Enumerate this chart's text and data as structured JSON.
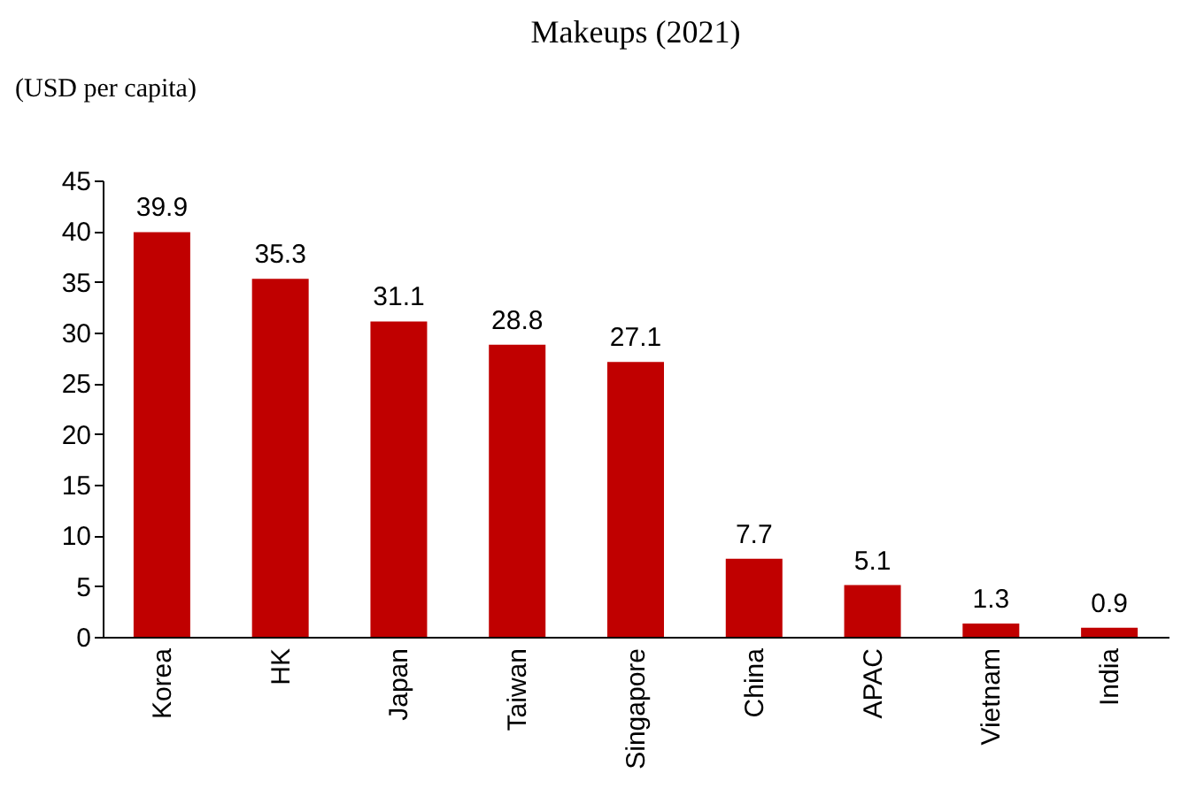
{
  "chart_data": {
    "type": "bar",
    "title": "Makeups (2021)",
    "ylabel": "(USD per capita)",
    "categories": [
      "Korea",
      "HK",
      "Japan",
      "Taiwan",
      "Singapore",
      "China",
      "APAC",
      "Vietnam",
      "India"
    ],
    "values": [
      39.9,
      35.3,
      31.1,
      28.8,
      27.1,
      7.7,
      5.1,
      1.3,
      0.9
    ],
    "color": "#c00000",
    "ylim": [
      0,
      45
    ],
    "yticks": [
      0,
      5,
      10,
      15,
      20,
      25,
      30,
      35,
      40,
      45
    ],
    "grid": false,
    "data_labels": true
  }
}
